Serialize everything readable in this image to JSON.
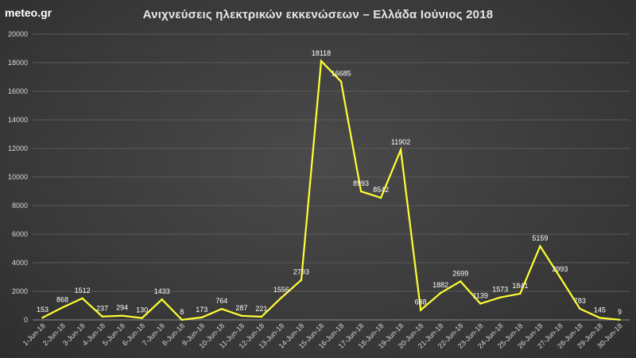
{
  "brand": "meteo.gr",
  "chart_data": {
    "type": "line",
    "title": "Ανιχνεύσεις ηλεκτρικών εκκενώσεων – Ελλάδα Ιούνιος 2018",
    "xlabel": "",
    "ylabel": "",
    "ylim": [
      0,
      20000
    ],
    "y_ticks": [
      0,
      2000,
      4000,
      6000,
      8000,
      10000,
      12000,
      14000,
      16000,
      18000,
      20000
    ],
    "grid": true,
    "legend": "none",
    "line_color": "#ffff33",
    "categories": [
      "1-Jun-18",
      "2-Jun-18",
      "3-Jun-18",
      "4-Jun-18",
      "5-Jun-18",
      "6-Jun-18",
      "7-Jun-18",
      "8-Jun-18",
      "9-Jun-18",
      "10-Jun-18",
      "11-Jun-18",
      "12-Jun-18",
      "13-Jun-18",
      "14-Jun-18",
      "15-Jun-18",
      "16-Jun-18",
      "17-Jun-18",
      "18-Jun-18",
      "19-Jun-18",
      "20-Jun-18",
      "21-Jun-18",
      "22-Jun-18",
      "23-Jun-18",
      "24-Jun-18",
      "25-Jun-18",
      "26-Jun-18",
      "27-Jun-18",
      "28-Jun-18",
      "29-Jun-18",
      "30-Jun-18"
    ],
    "values": [
      153,
      868,
      1512,
      237,
      294,
      130,
      1433,
      8,
      173,
      764,
      287,
      221,
      1556,
      2793,
      18118,
      16685,
      8993,
      8542,
      11902,
      688,
      1882,
      2699,
      1139,
      1573,
      1841,
      5159,
      2993,
      783,
      145,
      9
    ]
  }
}
